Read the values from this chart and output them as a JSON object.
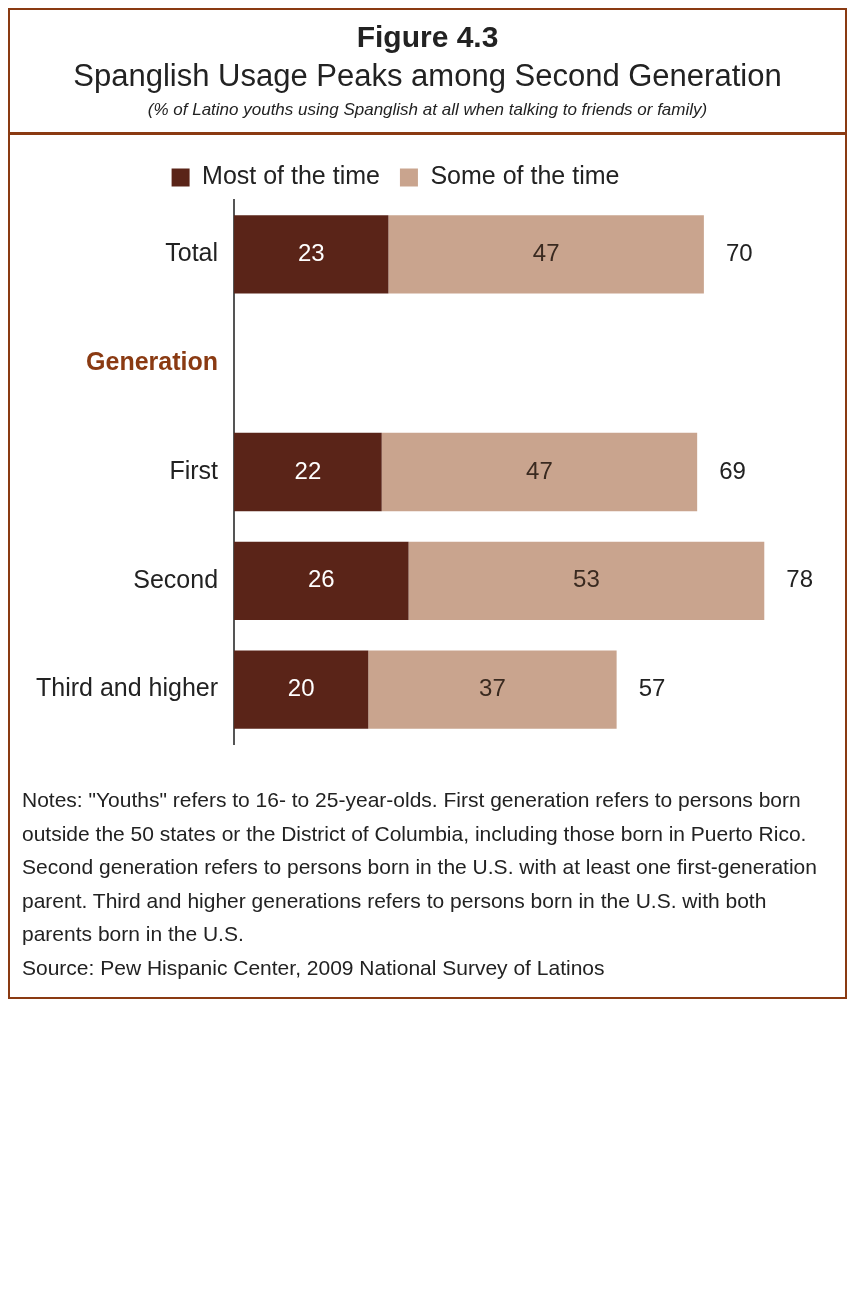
{
  "chart_data": {
    "type": "bar",
    "orientation": "horizontal",
    "stacked": true,
    "title": "Figure 4.3",
    "subtitle": "Spanglish Usage Peaks among Second Generation",
    "categories": [
      "Total",
      "Generation",
      "First",
      "Second",
      "Third and higher"
    ],
    "series": [
      {
        "name": "Most of the time",
        "color": "#5a2418",
        "values": [
          23,
          null,
          22,
          26,
          20
        ]
      },
      {
        "name": "Some of the time",
        "color": "#c9a48e",
        "values": [
          47,
          null,
          47,
          53,
          37
        ]
      }
    ],
    "data_labels": true,
    "totals": [
      "70",
      null,
      "69",
      "78",
      "57"
    ],
    "legend": "top",
    "grid": false,
    "annotations": [
      "(% of Latino youths using Spanglish at all when talking to friends or family)",
      "Notes: \"Youths\" refers to 16- to 25-year-olds. First generation refers to persons born outside the 50 states or the District of Columbia, including those born in Puerto Rico. Second generation refers to persons born in the U.S. with at least one first-generation parent. Third and higher generations refers to persons born in the U.S. with both parents born in the U.S.",
      "Source: Pew Hispanic Center, 2009 National Survey of Latinos"
    ]
  }
}
